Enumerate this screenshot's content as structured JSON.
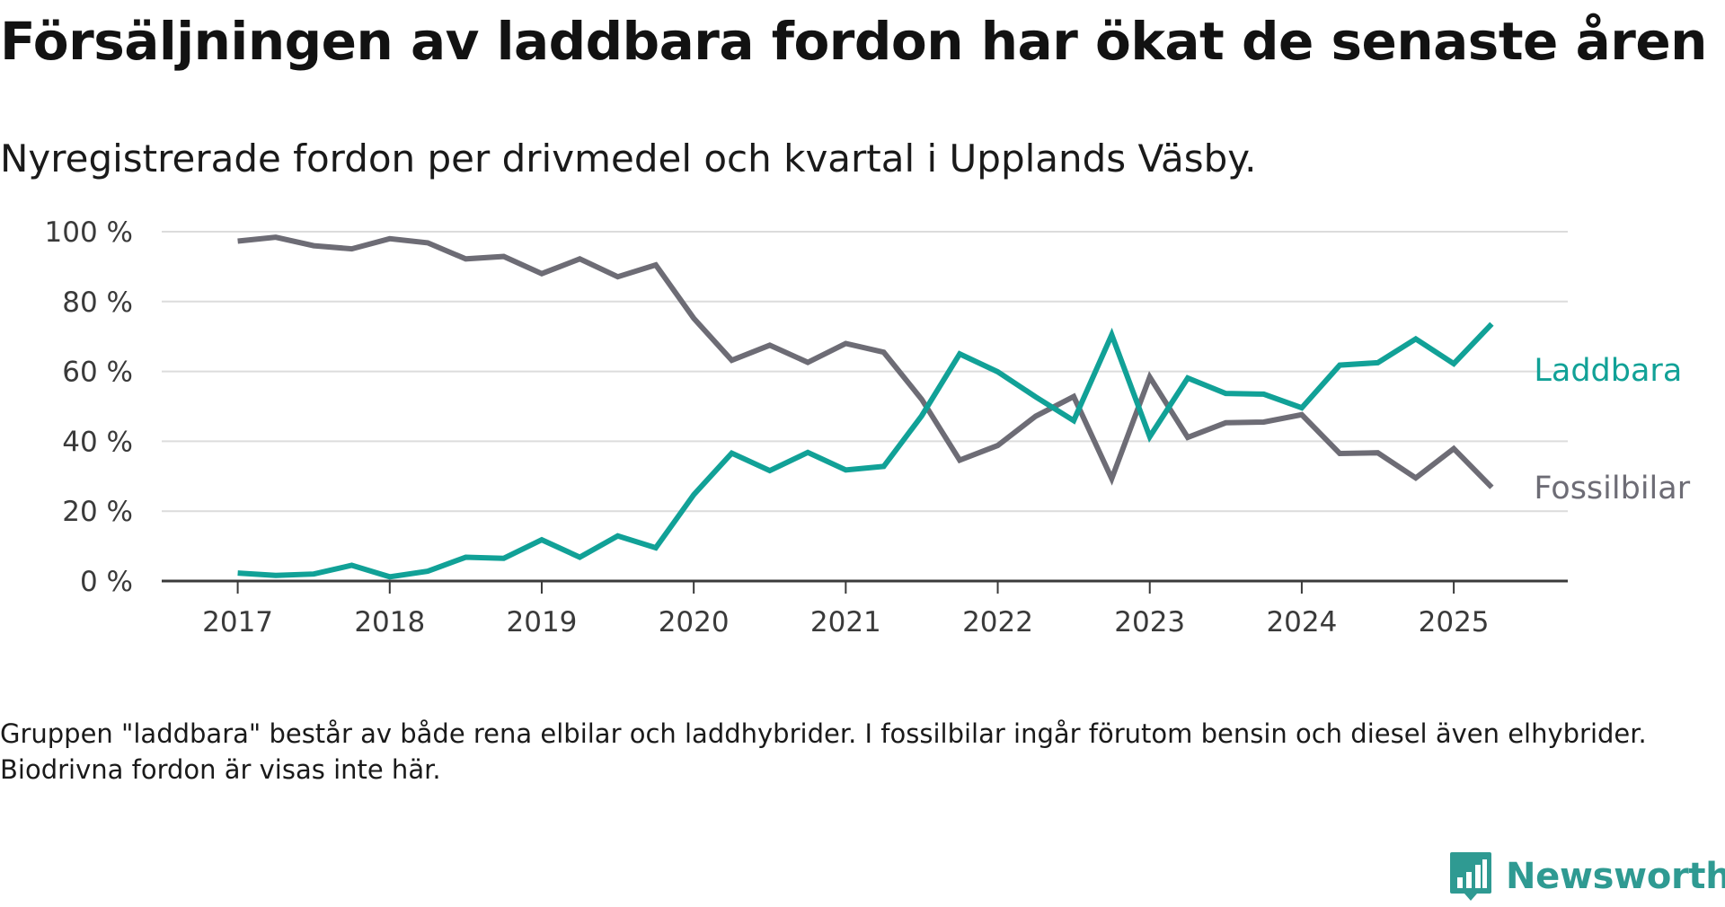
{
  "title": "Försäljningen av laddbara fordon har ökat de senaste åren",
  "subtitle": "Nyregistrerade fordon per drivmedel och kvartal i Upplands Väsby.",
  "footnote": "Gruppen \"laddbara\" består av både rena elbilar och laddhybrider. I fossilbilar ingår förutom bensin och diesel även elhybrider. Biodrivna fordon är visas inte här.",
  "brand": "Newsworthy",
  "colors": {
    "laddbara": "#11a197",
    "fossilbilar": "#6d6c75",
    "grid": "#dcdcdc",
    "axis": "#3a3a3a",
    "tick_text": "#3a3a3a",
    "brand": "#2f9a92"
  },
  "icons": {
    "brand_logo": "bar-chart-speech-bubble-icon"
  },
  "chart_data": {
    "type": "line",
    "title": "Försäljningen av laddbara fordon har ökat de senaste åren",
    "subtitle": "Nyregistrerade fordon per drivmedel och kvartal i Upplands Väsby.",
    "xlabel": "",
    "ylabel": "",
    "x_unit": "quarter",
    "x": [
      "2017 Q1",
      "2017 Q2",
      "2017 Q3",
      "2017 Q4",
      "2018 Q1",
      "2018 Q2",
      "2018 Q3",
      "2018 Q4",
      "2019 Q1",
      "2019 Q2",
      "2019 Q3",
      "2019 Q4",
      "2020 Q1",
      "2020 Q2",
      "2020 Q3",
      "2020 Q4",
      "2021 Q1",
      "2021 Q2",
      "2021 Q3",
      "2021 Q4",
      "2022 Q1",
      "2022 Q2",
      "2022 Q3",
      "2022 Q4",
      "2023 Q1",
      "2023 Q2",
      "2023 Q3",
      "2023 Q4",
      "2024 Q1",
      "2024 Q2",
      "2024 Q3",
      "2024 Q4",
      "2025 Q1",
      "2025 Q2"
    ],
    "xlim": [
      "2016 Q3",
      "2025 Q4"
    ],
    "x_ticks": [
      "2017",
      "2018",
      "2019",
      "2020",
      "2021",
      "2022",
      "2023",
      "2024",
      "2025"
    ],
    "ylim": [
      0,
      100
    ],
    "y_ticks": [
      0,
      20,
      40,
      60,
      80,
      100
    ],
    "y_tick_labels": [
      "0 %",
      "20 %",
      "40 %",
      "60 %",
      "80 %",
      "100 %"
    ],
    "grid": true,
    "legend": "direct labels at right end of lines",
    "series": [
      {
        "name": "Laddbara",
        "color": "#11a197",
        "values": [
          2.3,
          1.6,
          2.0,
          4.5,
          1.2,
          2.8,
          6.8,
          6.5,
          11.8,
          6.8,
          12.9,
          9.5,
          24.7,
          36.6,
          31.6,
          36.8,
          31.8,
          32.8,
          47.3,
          65.0,
          59.9,
          52.7,
          45.9,
          70.5,
          41.3,
          58.1,
          53.7,
          53.5,
          49.6,
          61.8,
          62.5,
          69.3,
          62.2,
          73.6
        ]
      },
      {
        "name": "Fossilbilar",
        "color": "#6d6c75",
        "values": [
          97.3,
          98.4,
          96.0,
          95.1,
          98.0,
          96.8,
          92.2,
          92.9,
          88.0,
          92.2,
          87.1,
          90.5,
          75.2,
          63.2,
          67.5,
          62.6,
          68.0,
          65.5,
          52.0,
          34.6,
          38.8,
          47.2,
          52.8,
          29.3,
          58.4,
          41.1,
          45.3,
          45.5,
          47.6,
          36.5,
          36.7,
          29.5,
          37.9,
          26.8
        ]
      }
    ]
  }
}
